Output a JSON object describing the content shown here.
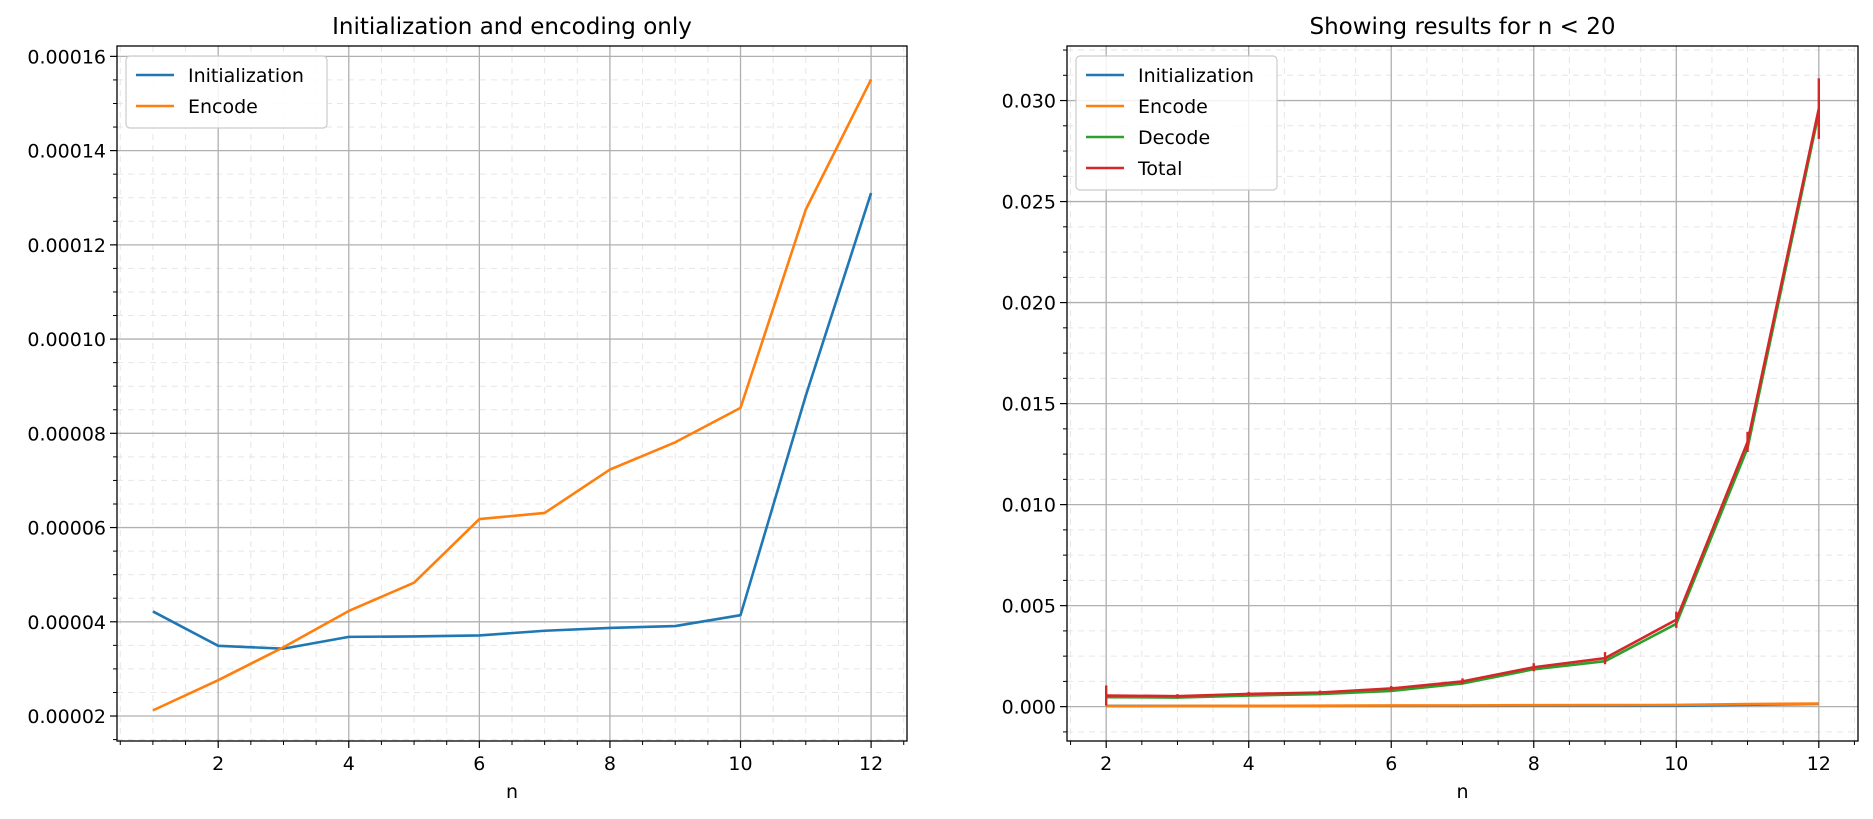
{
  "chart_data": [
    {
      "type": "line",
      "title": "Initialization and encoding only",
      "xlabel": "n",
      "ylabel": "",
      "xlim": [
        0.45,
        12.55
      ],
      "ylim": [
        1.47e-05,
        0.0001622
      ],
      "x_ticks": [
        2,
        4,
        6,
        8,
        10,
        12
      ],
      "x_tick_labels": [
        "2",
        "4",
        "6",
        "8",
        "10",
        "12"
      ],
      "y_ticks": [
        2e-05,
        4e-05,
        6e-05,
        8e-05,
        0.0001,
        0.00012,
        0.00014,
        0.00016
      ],
      "y_tick_labels": [
        "0.00002",
        "0.00004",
        "0.00006",
        "0.00008",
        "0.00010",
        "0.00012",
        "0.00014",
        "0.00016"
      ],
      "grid": true,
      "legend_position": "upper-left",
      "series": [
        {
          "name": "Initialization",
          "color": "#1f77b4",
          "x": [
            1,
            2,
            3,
            4,
            5,
            6,
            7,
            8,
            9,
            10,
            11,
            12
          ],
          "y": [
            4.22e-05,
            3.49e-05,
            3.43e-05,
            3.68e-05,
            3.69e-05,
            3.71e-05,
            3.81e-05,
            3.87e-05,
            3.91e-05,
            4.14e-05,
            8.8e-05,
            0.000131
          ]
        },
        {
          "name": "Encode",
          "color": "#ff7f0e",
          "x": [
            1,
            2,
            3,
            4,
            5,
            6,
            7,
            8,
            9,
            10,
            11,
            12
          ],
          "y": [
            2.12e-05,
            2.76e-05,
            3.46e-05,
            4.23e-05,
            4.83e-05,
            6.18e-05,
            6.31e-05,
            7.23e-05,
            7.81e-05,
            8.54e-05,
            0.0001275,
            0.0001551
          ]
        }
      ]
    },
    {
      "type": "line",
      "title": "Showing results for n < 20",
      "xlabel": "n",
      "ylabel": "",
      "xlim": [
        1.45,
        12.55
      ],
      "ylim": [
        -0.0017,
        0.0327
      ],
      "x_ticks": [
        2,
        4,
        6,
        8,
        10,
        12
      ],
      "x_tick_labels": [
        "2",
        "4",
        "6",
        "8",
        "10",
        "12"
      ],
      "y_ticks": [
        0.0,
        0.005,
        0.01,
        0.015,
        0.02,
        0.025,
        0.03
      ],
      "y_tick_labels": [
        "0.000",
        "0.005",
        "0.010",
        "0.015",
        "0.020",
        "0.025",
        "0.030"
      ],
      "grid": true,
      "legend_position": "upper-left",
      "series": [
        {
          "name": "Initialization",
          "color": "#1f77b4",
          "x": [
            2,
            3,
            4,
            5,
            6,
            7,
            8,
            9,
            10,
            11,
            12
          ],
          "y": [
            3.5e-05,
            3.4e-05,
            3.7e-05,
            3.7e-05,
            3.7e-05,
            3.8e-05,
            3.9e-05,
            3.9e-05,
            4.1e-05,
            8.8e-05,
            0.000131
          ]
        },
        {
          "name": "Encode",
          "color": "#ff7f0e",
          "x": [
            2,
            3,
            4,
            5,
            6,
            7,
            8,
            9,
            10,
            11,
            12
          ],
          "y": [
            2.8e-05,
            3.5e-05,
            4.2e-05,
            4.8e-05,
            6.2e-05,
            6.3e-05,
            7.2e-05,
            7.8e-05,
            8.5e-05,
            0.000128,
            0.000155
          ]
        },
        {
          "name": "Decode",
          "color": "#2ca02c",
          "x": [
            2,
            3,
            4,
            5,
            6,
            7,
            8,
            9,
            10,
            11,
            12
          ],
          "y": [
            0.00047,
            0.00045,
            0.00055,
            0.00062,
            0.00078,
            0.00115,
            0.00185,
            0.00225,
            0.0041,
            0.0128,
            0.0294
          ]
        },
        {
          "name": "Total",
          "color": "#d62728",
          "x": [
            2,
            3,
            4,
            5,
            6,
            7,
            8,
            9,
            10,
            11,
            12
          ],
          "y": [
            0.00055,
            0.00052,
            0.00063,
            0.0007,
            0.0009,
            0.00125,
            0.00195,
            0.0024,
            0.0043,
            0.0131,
            0.0296
          ],
          "error": [
            0.0005,
            0.0001,
            0.0001,
            0.0001,
            0.00012,
            0.00015,
            0.0002,
            0.0003,
            0.0004,
            0.0005,
            0.0015
          ]
        }
      ]
    }
  ]
}
